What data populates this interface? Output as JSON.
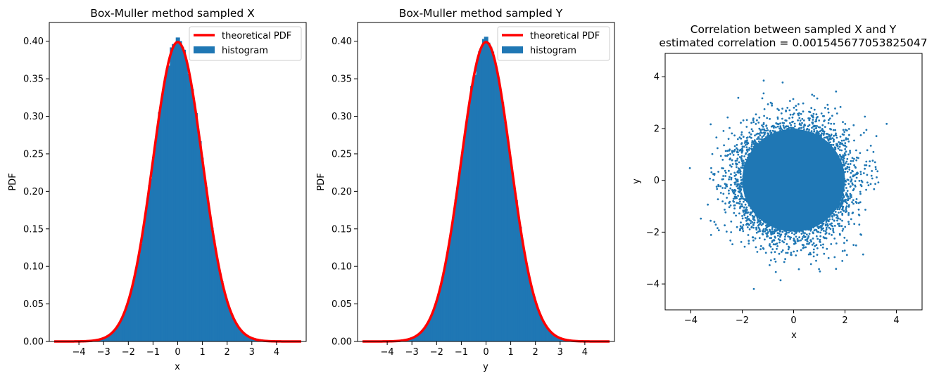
{
  "colors": {
    "histogram": "#1f77b4",
    "pdf": "#ff0000",
    "scatter": "#1f77b4"
  },
  "chart_data": [
    {
      "type": "histogram",
      "title": "Box-Muller method sampled X",
      "xlabel": "x",
      "ylabel": "PDF",
      "xlim": [
        -5.2,
        5.2
      ],
      "ylim": [
        0.0,
        0.425
      ],
      "xticks": [
        -4,
        -3,
        -2,
        -1,
        0,
        1,
        2,
        3,
        4
      ],
      "yticks": [
        0.0,
        0.05,
        0.1,
        0.15,
        0.2,
        0.25,
        0.3,
        0.35,
        0.4
      ],
      "xtick_labels": [
        "−4",
        "−3",
        "−2",
        "−1",
        "0",
        "1",
        "2",
        "3",
        "4"
      ],
      "ytick_labels": [
        "0.00",
        "0.05",
        "0.10",
        "0.15",
        "0.20",
        "0.25",
        "0.30",
        "0.35",
        "0.40"
      ],
      "grid": false,
      "legend_position": "top-right",
      "series": [
        {
          "name": "theoretical PDF",
          "kind": "line",
          "function": "standard normal density",
          "x_range": [
            -5,
            5
          ]
        },
        {
          "name": "histogram",
          "kind": "bars",
          "distribution": "standard normal",
          "x_range": [
            -4,
            4
          ],
          "peak_density": 0.405
        }
      ]
    },
    {
      "type": "histogram",
      "title": "Box-Muller method sampled Y",
      "xlabel": "y",
      "ylabel": "PDF",
      "xlim": [
        -5.2,
        5.2
      ],
      "ylim": [
        0.0,
        0.425
      ],
      "xticks": [
        -4,
        -3,
        -2,
        -1,
        0,
        1,
        2,
        3,
        4
      ],
      "yticks": [
        0.0,
        0.05,
        0.1,
        0.15,
        0.2,
        0.25,
        0.3,
        0.35,
        0.4
      ],
      "xtick_labels": [
        "−4",
        "−3",
        "−2",
        "−1",
        "0",
        "1",
        "2",
        "3",
        "4"
      ],
      "ytick_labels": [
        "0.00",
        "0.05",
        "0.10",
        "0.15",
        "0.20",
        "0.25",
        "0.30",
        "0.35",
        "0.40"
      ],
      "grid": false,
      "legend_position": "top-right",
      "series": [
        {
          "name": "theoretical PDF",
          "kind": "line",
          "function": "standard normal density",
          "x_range": [
            -5,
            5
          ]
        },
        {
          "name": "histogram",
          "kind": "bars",
          "distribution": "standard normal",
          "x_range": [
            -4,
            4
          ],
          "peak_density": 0.406
        }
      ]
    },
    {
      "type": "scatter",
      "title": "Correlation between sampled X and Y",
      "subtitle": "estimated correlation = 0.0015456770538250​47",
      "xlabel": "x",
      "ylabel": "y",
      "xlim": [
        -5.0,
        5.0
      ],
      "ylim": [
        -5.0,
        4.9
      ],
      "xticks": [
        -4,
        -2,
        0,
        2,
        4
      ],
      "yticks": [
        -4,
        -2,
        0,
        2,
        4
      ],
      "xtick_labels": [
        "−4",
        "−2",
        "0",
        "2",
        "4"
      ],
      "ytick_labels": [
        "−4",
        "−2",
        "0",
        "2",
        "4"
      ],
      "grid": false,
      "series": [
        {
          "kind": "points",
          "distribution": "independent standard normal (x, y)",
          "correlation": 0.001545677053825047
        }
      ]
    }
  ]
}
